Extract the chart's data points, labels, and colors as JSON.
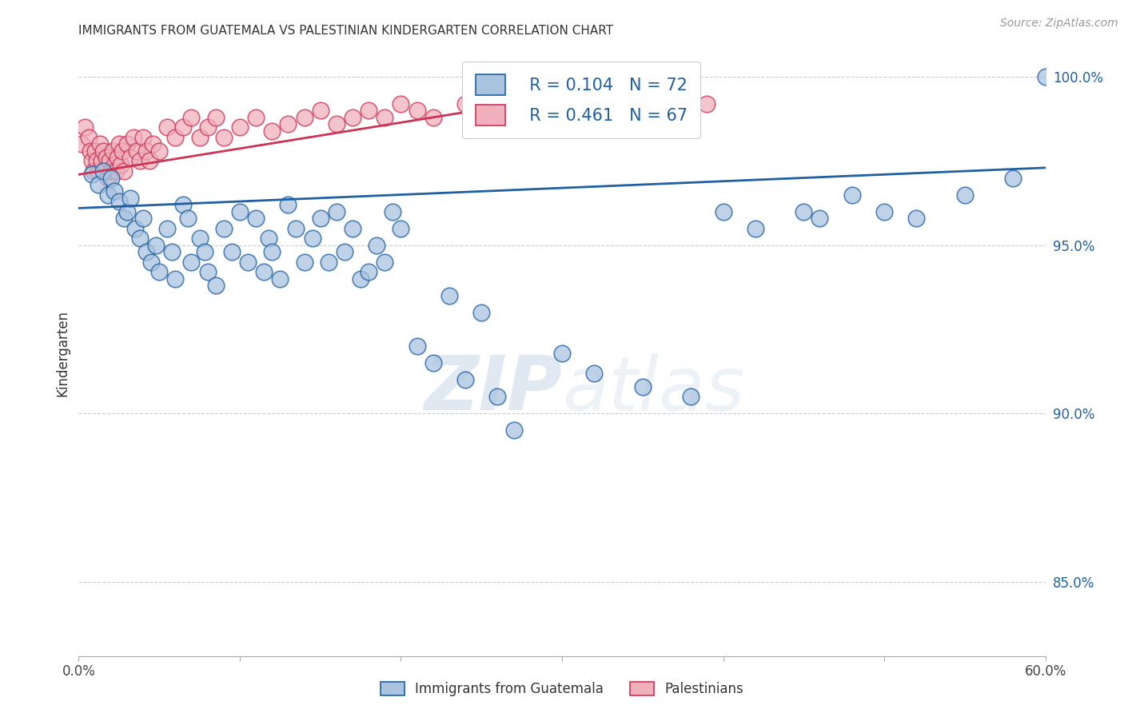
{
  "title": "IMMIGRANTS FROM GUATEMALA VS PALESTINIAN KINDERGARTEN CORRELATION CHART",
  "source": "Source: ZipAtlas.com",
  "xlabel_blue": "Immigrants from Guatemala",
  "xlabel_pink": "Palestinians",
  "ylabel": "Kindergarten",
  "watermark_zip": "ZIP",
  "watermark_atlas": "atlas",
  "legend_blue_R": "R = 0.104",
  "legend_blue_N": "N = 72",
  "legend_pink_R": "R = 0.461",
  "legend_pink_N": "N = 67",
  "blue_scatter_color": "#aac4e0",
  "blue_line_color": "#2060a0",
  "pink_scatter_color": "#f0b0bc",
  "pink_line_color": "#cc3355",
  "xlim": [
    0.0,
    0.6
  ],
  "ylim": [
    0.828,
    1.008
  ],
  "yticks": [
    0.85,
    0.9,
    0.95,
    1.0
  ],
  "ytick_labels": [
    "85.0%",
    "90.0%",
    "95.0%",
    "100.0%"
  ],
  "xticks": [
    0.0,
    0.1,
    0.2,
    0.3,
    0.4,
    0.5,
    0.6
  ],
  "xtick_labels": [
    "0.0%",
    "",
    "",
    "",
    "",
    "",
    "60.0%"
  ],
  "blue_trend_x": [
    0.0,
    0.6
  ],
  "blue_trend_y": [
    0.961,
    0.973
  ],
  "pink_trend_x": [
    0.0,
    0.35
  ],
  "pink_trend_y": [
    0.971,
    0.998
  ],
  "blue_x": [
    0.008,
    0.012,
    0.015,
    0.018,
    0.02,
    0.022,
    0.025,
    0.028,
    0.03,
    0.032,
    0.035,
    0.038,
    0.04,
    0.042,
    0.045,
    0.048,
    0.05,
    0.055,
    0.058,
    0.06,
    0.065,
    0.068,
    0.07,
    0.075,
    0.078,
    0.08,
    0.085,
    0.09,
    0.095,
    0.1,
    0.105,
    0.11,
    0.115,
    0.118,
    0.12,
    0.125,
    0.13,
    0.135,
    0.14,
    0.145,
    0.15,
    0.155,
    0.16,
    0.165,
    0.17,
    0.175,
    0.18,
    0.185,
    0.19,
    0.195,
    0.2,
    0.21,
    0.22,
    0.23,
    0.24,
    0.25,
    0.26,
    0.27,
    0.3,
    0.32,
    0.35,
    0.38,
    0.4,
    0.42,
    0.45,
    0.46,
    0.48,
    0.5,
    0.52,
    0.55,
    0.58,
    0.6
  ],
  "blue_y": [
    0.971,
    0.968,
    0.972,
    0.965,
    0.97,
    0.966,
    0.963,
    0.958,
    0.96,
    0.964,
    0.955,
    0.952,
    0.958,
    0.948,
    0.945,
    0.95,
    0.942,
    0.955,
    0.948,
    0.94,
    0.962,
    0.958,
    0.945,
    0.952,
    0.948,
    0.942,
    0.938,
    0.955,
    0.948,
    0.96,
    0.945,
    0.958,
    0.942,
    0.952,
    0.948,
    0.94,
    0.962,
    0.955,
    0.945,
    0.952,
    0.958,
    0.945,
    0.96,
    0.948,
    0.955,
    0.94,
    0.942,
    0.95,
    0.945,
    0.96,
    0.955,
    0.92,
    0.915,
    0.935,
    0.91,
    0.93,
    0.905,
    0.895,
    0.918,
    0.912,
    0.908,
    0.905,
    0.96,
    0.955,
    0.96,
    0.958,
    0.965,
    0.96,
    0.958,
    0.965,
    0.97,
    1.0
  ],
  "pink_x": [
    0.002,
    0.004,
    0.006,
    0.007,
    0.008,
    0.009,
    0.01,
    0.011,
    0.012,
    0.013,
    0.014,
    0.015,
    0.016,
    0.017,
    0.018,
    0.019,
    0.02,
    0.021,
    0.022,
    0.023,
    0.024,
    0.025,
    0.026,
    0.027,
    0.028,
    0.03,
    0.032,
    0.034,
    0.036,
    0.038,
    0.04,
    0.042,
    0.044,
    0.046,
    0.05,
    0.055,
    0.06,
    0.065,
    0.07,
    0.075,
    0.08,
    0.085,
    0.09,
    0.1,
    0.11,
    0.12,
    0.13,
    0.14,
    0.15,
    0.16,
    0.17,
    0.18,
    0.19,
    0.2,
    0.21,
    0.22,
    0.24,
    0.26,
    0.28,
    0.3,
    0.32,
    0.34,
    0.35,
    0.36,
    0.37,
    0.38,
    0.39
  ],
  "pink_y": [
    0.98,
    0.985,
    0.982,
    0.978,
    0.975,
    0.972,
    0.978,
    0.975,
    0.972,
    0.98,
    0.975,
    0.978,
    0.972,
    0.976,
    0.97,
    0.975,
    0.972,
    0.978,
    0.974,
    0.972,
    0.976,
    0.98,
    0.974,
    0.978,
    0.972,
    0.98,
    0.976,
    0.982,
    0.978,
    0.975,
    0.982,
    0.978,
    0.975,
    0.98,
    0.978,
    0.985,
    0.982,
    0.985,
    0.988,
    0.982,
    0.985,
    0.988,
    0.982,
    0.985,
    0.988,
    0.984,
    0.986,
    0.988,
    0.99,
    0.986,
    0.988,
    0.99,
    0.988,
    0.992,
    0.99,
    0.988,
    0.992,
    0.994,
    0.99,
    0.992,
    0.994,
    0.996,
    0.996,
    0.994,
    0.996,
    0.998,
    0.992
  ]
}
